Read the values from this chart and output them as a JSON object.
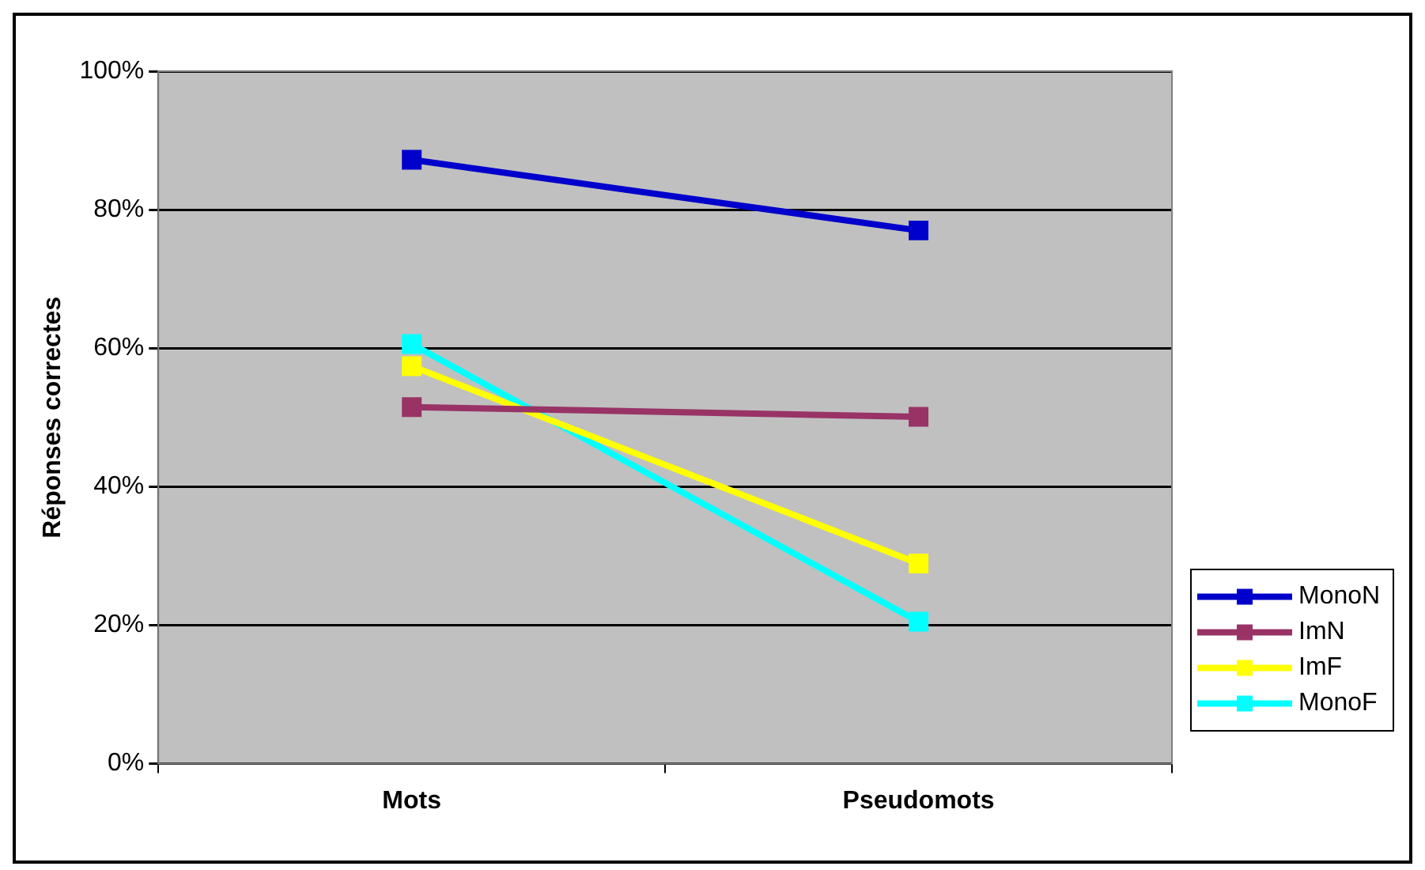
{
  "chart_data": {
    "type": "line",
    "ylabel": "Réponses correctes",
    "categories": [
      "Mots",
      "Pseudomots"
    ],
    "series": [
      {
        "name": "MonoN",
        "color": "#0000cc",
        "values": [
          87.2,
          77.0
        ]
      },
      {
        "name": "ImN",
        "color": "#993366",
        "values": [
          51.5,
          50.1
        ]
      },
      {
        "name": "ImF",
        "color": "#ffff00",
        "values": [
          57.4,
          28.9
        ]
      },
      {
        "name": "MonoF",
        "color": "#00ffff",
        "values": [
          60.6,
          20.5
        ]
      }
    ],
    "ylim": [
      0,
      100
    ],
    "yticks": [
      {
        "value": 0,
        "label": "0%"
      },
      {
        "value": 20,
        "label": "20%"
      },
      {
        "value": 40,
        "label": "40%"
      },
      {
        "value": 60,
        "label": "60%"
      },
      {
        "value": 80,
        "label": "80%"
      },
      {
        "value": 100,
        "label": "100%"
      }
    ],
    "grid": "y",
    "legend": "right",
    "marker": "square",
    "line_style": "solid"
  }
}
